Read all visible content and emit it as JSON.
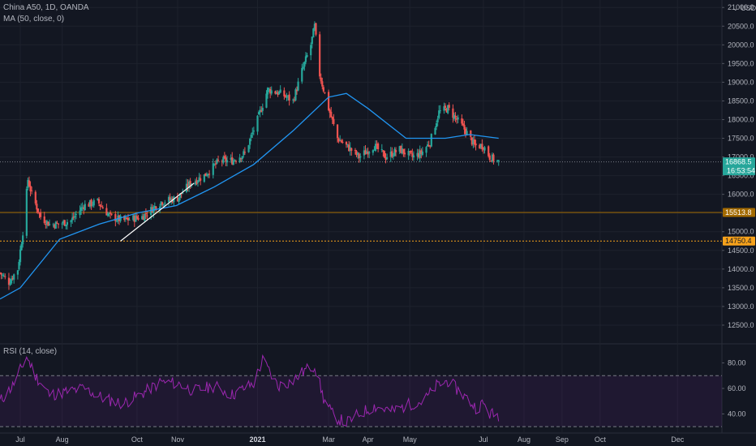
{
  "header": {
    "symbol_line": "China A50, 1D, OANDA",
    "ma_line": "MA (50, close, 0)",
    "rsi_line": "RSI (14, close)",
    "currency": "USD",
    "currency_caret": "⌄"
  },
  "colors": {
    "background": "#131722",
    "up": "#26a69a",
    "down": "#ef5350",
    "ma": "#2196f3",
    "rsi_line": "#9c27b0",
    "rsi_band": "#7b1fa2",
    "level_high": "#f7a21b",
    "level_mid": "#a36a00",
    "last_price": "#26a69a",
    "trendline": "#ffffff"
  },
  "price_tags": {
    "last": "16868.5",
    "countdown": "16:53:54",
    "level_1": "15513.8",
    "level_2": "14750.4"
  },
  "chart_data": [
    {
      "type": "candlestick",
      "title": "China A50, 1D, OANDA",
      "y_axis_ticks": [
        12500,
        13000,
        13500,
        14000,
        14500,
        15000,
        15500,
        16000,
        16500,
        17000,
        17500,
        18000,
        18500,
        19000,
        19500,
        20000,
        20500,
        21000
      ],
      "y_axis_tick_labels": [
        "12500.0",
        "13000.0",
        "13500.0",
        "14000.0",
        "14500.0",
        "15000.0",
        "15500.0",
        "16000.0",
        "16500.0",
        "17000.0",
        "17500.0",
        "18000.0",
        "18500.0",
        "19000.0",
        "19500.0",
        "20000.0",
        "20500.0",
        "21000.0"
      ],
      "ylim": [
        12000,
        21200
      ],
      "x_axis_labels": [
        "Jul",
        "Aug",
        "Oct",
        "Nov",
        "2021",
        "Mar",
        "Apr",
        "May",
        "Jul",
        "Aug",
        "Sep",
        "Oct",
        "Dec"
      ],
      "x_axis_label_dates": [
        "2020-07-01",
        "2020-08-03",
        "2020-10-01",
        "2020-11-02",
        "2021-01-04",
        "2021-03-01",
        "2021-04-01",
        "2021-05-04",
        "2021-07-01",
        "2021-08-02",
        "2021-09-01",
        "2021-10-01",
        "2021-12-01"
      ],
      "xlim": [
        "2020-06-15",
        "2022-01-05"
      ],
      "last_bar_date": "2021-07-13",
      "close_path": [
        {
          "x": "2020-06-15",
          "y": 13900
        },
        {
          "x": "2020-06-22",
          "y": 13650
        },
        {
          "x": "2020-06-29",
          "y": 14000
        },
        {
          "x": "2020-07-03",
          "y": 15000
        },
        {
          "x": "2020-07-07",
          "y": 16400
        },
        {
          "x": "2020-07-10",
          "y": 16000
        },
        {
          "x": "2020-07-17",
          "y": 15400
        },
        {
          "x": "2020-07-24",
          "y": 15200
        },
        {
          "x": "2020-07-31",
          "y": 15200
        },
        {
          "x": "2020-08-10",
          "y": 15300
        },
        {
          "x": "2020-08-20",
          "y": 15700
        },
        {
          "x": "2020-08-31",
          "y": 15800
        },
        {
          "x": "2020-09-10",
          "y": 15400
        },
        {
          "x": "2020-09-20",
          "y": 15300
        },
        {
          "x": "2020-10-05",
          "y": 15400
        },
        {
          "x": "2020-10-20",
          "y": 15800
        },
        {
          "x": "2020-11-02",
          "y": 15900
        },
        {
          "x": "2020-11-12",
          "y": 16300
        },
        {
          "x": "2020-11-23",
          "y": 16500
        },
        {
          "x": "2020-12-05",
          "y": 16900
        },
        {
          "x": "2020-12-15",
          "y": 16900
        },
        {
          "x": "2020-12-25",
          "y": 17100
        },
        {
          "x": "2021-01-04",
          "y": 18000
        },
        {
          "x": "2021-01-12",
          "y": 18800
        },
        {
          "x": "2021-01-22",
          "y": 18700
        },
        {
          "x": "2021-02-01",
          "y": 18500
        },
        {
          "x": "2021-02-08",
          "y": 19300
        },
        {
          "x": "2021-02-15",
          "y": 20000
        },
        {
          "x": "2021-02-18",
          "y": 20500
        },
        {
          "x": "2021-02-22",
          "y": 19200
        },
        {
          "x": "2021-03-01",
          "y": 18300
        },
        {
          "x": "2021-03-08",
          "y": 17500
        },
        {
          "x": "2021-03-15",
          "y": 17300
        },
        {
          "x": "2021-03-25",
          "y": 17000
        },
        {
          "x": "2021-04-06",
          "y": 17300
        },
        {
          "x": "2021-04-15",
          "y": 17000
        },
        {
          "x": "2021-04-26",
          "y": 17200
        },
        {
          "x": "2021-05-06",
          "y": 17000
        },
        {
          "x": "2021-05-13",
          "y": 17100
        },
        {
          "x": "2021-05-20",
          "y": 17400
        },
        {
          "x": "2021-05-27",
          "y": 18200
        },
        {
          "x": "2021-06-03",
          "y": 18300
        },
        {
          "x": "2021-06-10",
          "y": 18000
        },
        {
          "x": "2021-06-17",
          "y": 17700
        },
        {
          "x": "2021-06-24",
          "y": 17300
        },
        {
          "x": "2021-07-01",
          "y": 17300
        },
        {
          "x": "2021-07-06",
          "y": 17000
        },
        {
          "x": "2021-07-13",
          "y": 16868.5
        }
      ],
      "ma_50": {
        "name": "MA (50, close, 0)",
        "points": [
          {
            "x": "2020-06-15",
            "y": 13200
          },
          {
            "x": "2020-07-01",
            "y": 13500
          },
          {
            "x": "2020-08-01",
            "y": 14800
          },
          {
            "x": "2020-09-01",
            "y": 15200
          },
          {
            "x": "2020-10-01",
            "y": 15500
          },
          {
            "x": "2020-11-01",
            "y": 15700
          },
          {
            "x": "2020-12-01",
            "y": 16200
          },
          {
            "x": "2021-01-01",
            "y": 16800
          },
          {
            "x": "2021-02-01",
            "y": 17700
          },
          {
            "x": "2021-03-01",
            "y": 18600
          },
          {
            "x": "2021-03-15",
            "y": 18700
          },
          {
            "x": "2021-04-01",
            "y": 18300
          },
          {
            "x": "2021-05-01",
            "y": 17500
          },
          {
            "x": "2021-06-01",
            "y": 17500
          },
          {
            "x": "2021-06-20",
            "y": 17600
          },
          {
            "x": "2021-07-13",
            "y": 17500
          }
        ]
      },
      "trendline": {
        "start": {
          "x": "2020-09-18",
          "y": 14750
        },
        "end": {
          "x": "2020-11-15",
          "y": 16300
        }
      },
      "horizontal_levels": [
        16868.5,
        15513.8,
        14750.4
      ],
      "current_price": 16868.5
    },
    {
      "type": "line",
      "title": "RSI (14, close)",
      "ylim": [
        25,
        95
      ],
      "y_axis_ticks": [
        40,
        60,
        80
      ],
      "y_axis_tick_labels": [
        "40.00",
        "60.00",
        "80.00"
      ],
      "band": [
        30,
        70
      ],
      "series": [
        {
          "points": [
            {
              "x": "2020-06-15",
              "y": 50
            },
            {
              "x": "2020-06-25",
              "y": 62
            },
            {
              "x": "2020-07-06",
              "y": 85
            },
            {
              "x": "2020-07-13",
              "y": 70
            },
            {
              "x": "2020-07-24",
              "y": 55
            },
            {
              "x": "2020-08-05",
              "y": 57
            },
            {
              "x": "2020-08-20",
              "y": 60
            },
            {
              "x": "2020-09-05",
              "y": 52
            },
            {
              "x": "2020-09-20",
              "y": 48
            },
            {
              "x": "2020-10-05",
              "y": 56
            },
            {
              "x": "2020-10-20",
              "y": 65
            },
            {
              "x": "2020-11-02",
              "y": 64
            },
            {
              "x": "2020-11-15",
              "y": 58
            },
            {
              "x": "2020-12-01",
              "y": 62
            },
            {
              "x": "2020-12-15",
              "y": 55
            },
            {
              "x": "2021-01-01",
              "y": 64
            },
            {
              "x": "2021-01-08",
              "y": 82
            },
            {
              "x": "2021-01-20",
              "y": 62
            },
            {
              "x": "2021-02-01",
              "y": 66
            },
            {
              "x": "2021-02-10",
              "y": 74
            },
            {
              "x": "2021-02-18",
              "y": 78
            },
            {
              "x": "2021-02-25",
              "y": 52
            },
            {
              "x": "2021-03-05",
              "y": 38
            },
            {
              "x": "2021-03-15",
              "y": 33
            },
            {
              "x": "2021-03-25",
              "y": 40
            },
            {
              "x": "2021-04-06",
              "y": 46
            },
            {
              "x": "2021-04-20",
              "y": 42
            },
            {
              "x": "2021-05-05",
              "y": 48
            },
            {
              "x": "2021-05-15",
              "y": 50
            },
            {
              "x": "2021-05-25",
              "y": 62
            },
            {
              "x": "2021-06-03",
              "y": 66
            },
            {
              "x": "2021-06-15",
              "y": 55
            },
            {
              "x": "2021-06-25",
              "y": 45
            },
            {
              "x": "2021-07-01",
              "y": 48
            },
            {
              "x": "2021-07-06",
              "y": 40
            },
            {
              "x": "2021-07-13",
              "y": 39
            }
          ]
        }
      ]
    }
  ]
}
